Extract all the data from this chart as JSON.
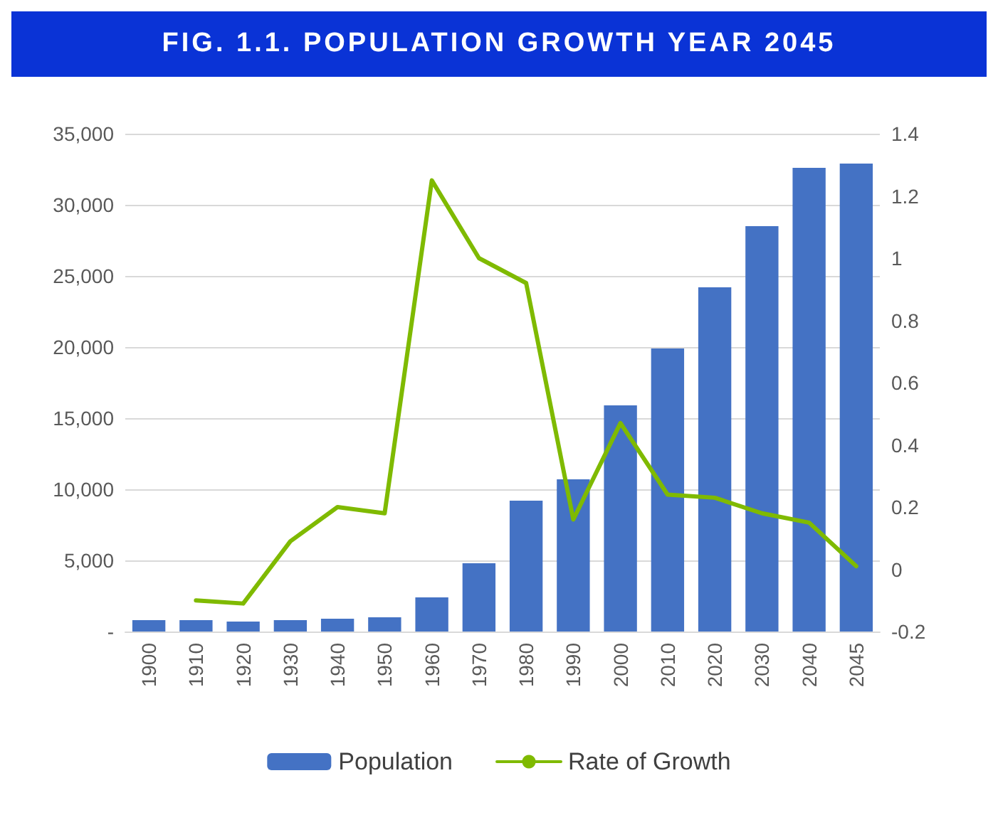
{
  "chart_data": {
    "type": "bar",
    "title": "FIG. 1.1. POPULATION GROWTH YEAR 2045",
    "categories": [
      "1900",
      "1910",
      "1920",
      "1930",
      "1940",
      "1950",
      "1960",
      "1970",
      "1980",
      "1990",
      "2000",
      "2010",
      "2020",
      "2030",
      "2040",
      "2045"
    ],
    "series": [
      {
        "name": "Population",
        "color": "#4472c4",
        "values": [
          800,
          800,
          700,
          800,
          900,
          1000,
          2400,
          4800,
          9200,
          10700,
          15900,
          19900,
          24200,
          28500,
          32600,
          32900
        ]
      },
      {
        "name": "Rate of Growth",
        "type": "line",
        "axis": "y2",
        "color": "#7fba00",
        "values": [
          null,
          -0.1,
          -0.11,
          0.09,
          0.2,
          0.18,
          1.25,
          1.0,
          0.92,
          0.16,
          0.47,
          0.24,
          0.23,
          0.18,
          0.15,
          0.01
        ]
      }
    ],
    "ylim": [
      0,
      35000
    ],
    "yticks": [
      {
        "value": 0,
        "label": "-"
      },
      {
        "value": 5000,
        "label": "5,000"
      },
      {
        "value": 10000,
        "label": "10,000"
      },
      {
        "value": 15000,
        "label": "15,000"
      },
      {
        "value": 20000,
        "label": "20,000"
      },
      {
        "value": 25000,
        "label": "25,000"
      },
      {
        "value": 30000,
        "label": "30,000"
      },
      {
        "value": 35000,
        "label": "35,000"
      }
    ],
    "y2lim": [
      -0.2,
      1.4
    ],
    "y2ticks": [
      -0.2,
      0,
      0.2,
      0.4,
      0.6,
      0.8,
      1,
      1.2,
      1.4
    ],
    "grid": "y",
    "legend": "bottom",
    "marker": "none",
    "line_style": "solid"
  }
}
